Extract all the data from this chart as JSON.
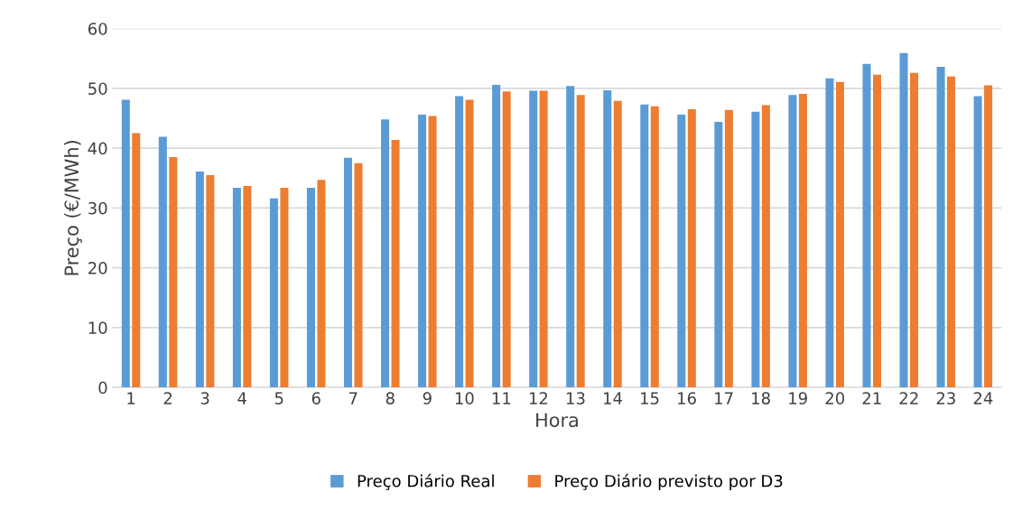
{
  "chart_data": {
    "type": "bar",
    "xlabel": "Hora",
    "ylabel": "Preço (€/MWh)",
    "categories": [
      "1",
      "2",
      "3",
      "4",
      "5",
      "6",
      "7",
      "8",
      "9",
      "10",
      "11",
      "12",
      "13",
      "14",
      "15",
      "16",
      "17",
      "18",
      "19",
      "20",
      "21",
      "22",
      "23",
      "24"
    ],
    "series": [
      {
        "name": "Preço Diário Real",
        "color": "#5b9bd5",
        "values": [
          48.1,
          41.9,
          36.1,
          33.4,
          31.6,
          33.4,
          38.4,
          44.8,
          45.6,
          48.7,
          50.6,
          49.6,
          50.4,
          49.7,
          47.3,
          45.6,
          44.4,
          46.1,
          48.9,
          51.7,
          54.1,
          55.9,
          53.6,
          48.7
        ]
      },
      {
        "name": "Preço Diário previsto por D3",
        "color": "#ed7d31",
        "values": [
          42.5,
          38.5,
          35.5,
          33.7,
          33.4,
          34.7,
          37.5,
          41.4,
          45.4,
          48.1,
          49.5,
          49.6,
          48.9,
          47.9,
          47.0,
          46.5,
          46.4,
          47.2,
          49.1,
          51.1,
          52.3,
          52.6,
          52.0,
          50.5
        ]
      }
    ],
    "ylim": [
      0,
      60
    ],
    "yticks": [
      0,
      10,
      20,
      30,
      40,
      50,
      60
    ],
    "grid": "y",
    "legend": "bottom"
  }
}
